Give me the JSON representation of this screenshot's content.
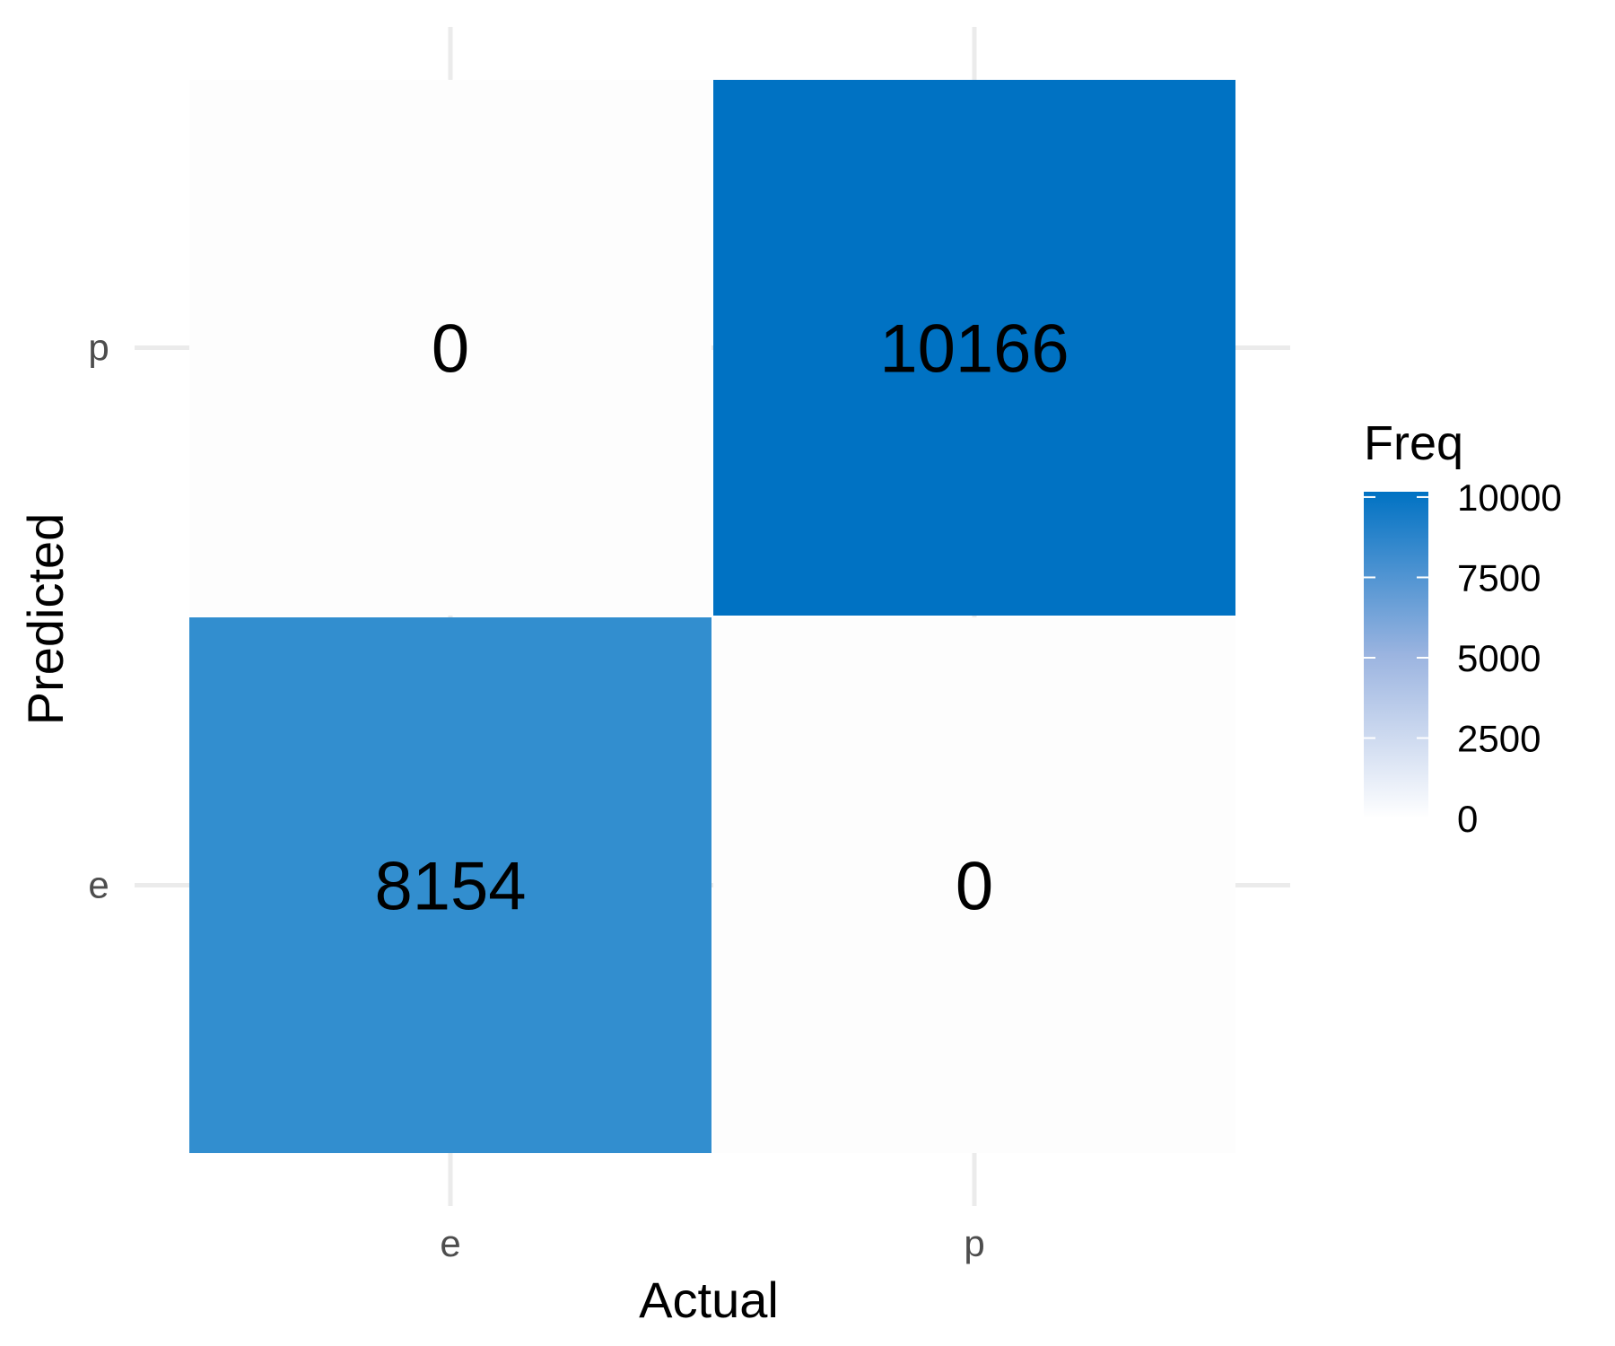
{
  "chart_data": {
    "type": "heatmap",
    "title": "",
    "xlabel": "Actual",
    "ylabel": "Predicted",
    "x_categories": [
      "e",
      "p"
    ],
    "y_categories": [
      "e",
      "p"
    ],
    "cells": [
      {
        "x": "e",
        "y": "p",
        "value": 0
      },
      {
        "x": "p",
        "y": "p",
        "value": 10166
      },
      {
        "x": "e",
        "y": "e",
        "value": 8154
      },
      {
        "x": "p",
        "y": "e",
        "value": 0
      }
    ],
    "grid": true,
    "legend": {
      "title": "Freq",
      "placement": "right",
      "ticks": [
        0,
        2500,
        5000,
        7500,
        10000
      ],
      "min": 0,
      "max": 10166,
      "low_color": "#ffffff",
      "high_color": "#0072c3"
    }
  }
}
